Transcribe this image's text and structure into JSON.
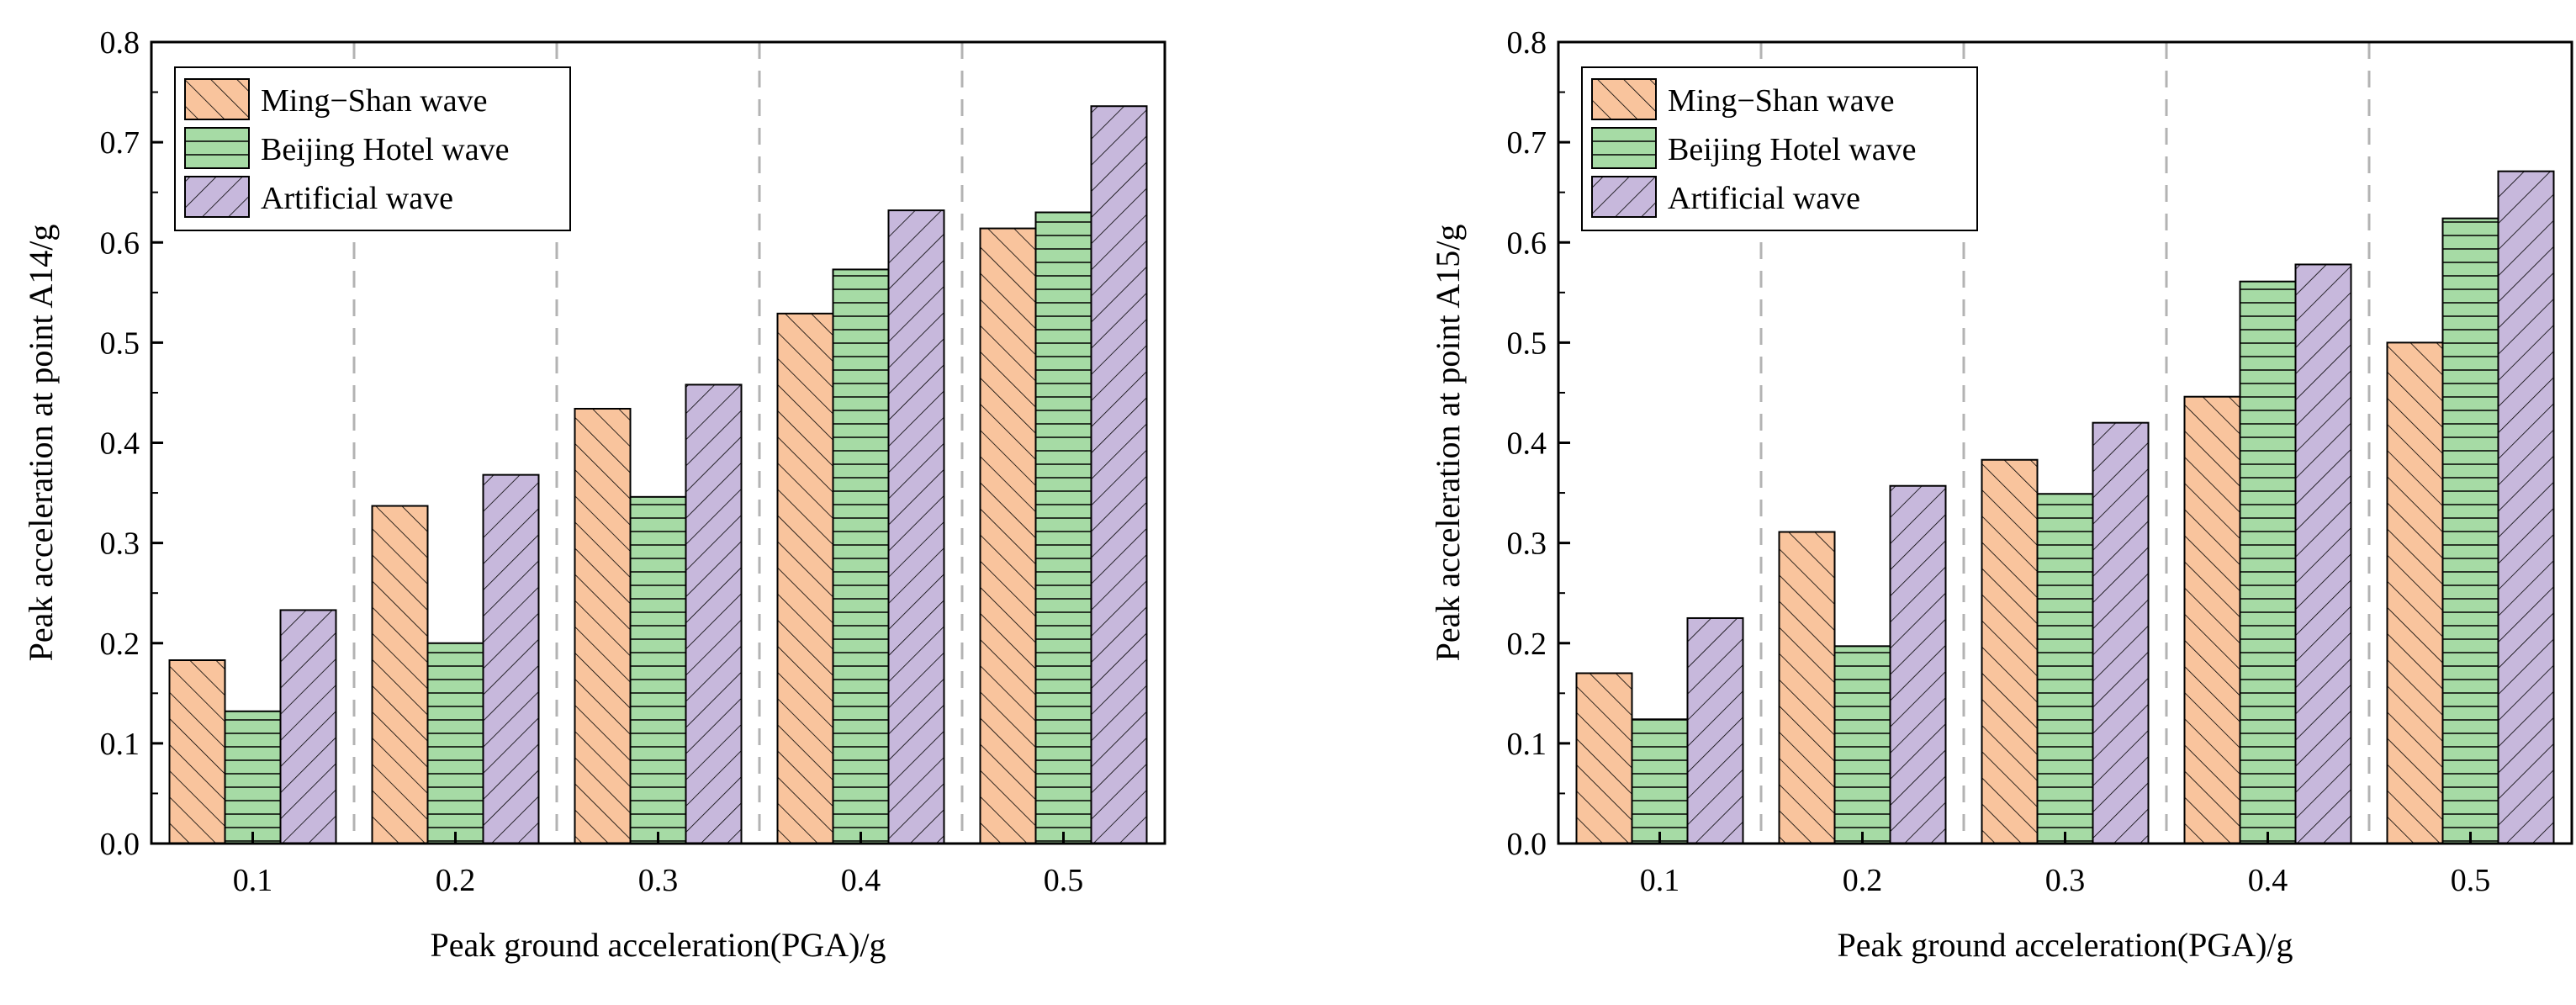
{
  "charts": [
    {
      "type": "bar",
      "categories": [
        "0.1",
        "0.2",
        "0.3",
        "0.4",
        "0.5"
      ],
      "series": [
        {
          "name": "Ming−Shan wave",
          "values": [
            0.183,
            0.337,
            0.434,
            0.529,
            0.614
          ],
          "fill": "#f9c49d",
          "hatch": "forward"
        },
        {
          "name": "Beijing Hotel wave",
          "values": [
            0.132,
            0.2,
            0.346,
            0.573,
            0.63
          ],
          "fill": "#a6dba5",
          "hatch": "horizontal"
        },
        {
          "name": "Artificial wave",
          "values": [
            0.233,
            0.368,
            0.458,
            0.632,
            0.736
          ],
          "fill": "#c7b8dc",
          "hatch": "backward"
        }
      ],
      "xlabel": "Peak ground acceleration(PGA)/g",
      "ylabel": "Peak acceleration at point A14/g",
      "ylim": [
        0,
        0.8
      ],
      "yticks": [
        "0.0",
        "0.1",
        "0.2",
        "0.3",
        "0.4",
        "0.5",
        "0.6",
        "0.7",
        "0.8"
      ],
      "separators": true,
      "legend": "top-left"
    },
    {
      "type": "bar",
      "categories": [
        "0.1",
        "0.2",
        "0.3",
        "0.4",
        "0.5"
      ],
      "series": [
        {
          "name": "Ming−Shan wave",
          "values": [
            0.17,
            0.311,
            0.383,
            0.446,
            0.5
          ],
          "fill": "#f9c49d",
          "hatch": "forward"
        },
        {
          "name": "Beijing Hotel wave",
          "values": [
            0.124,
            0.197,
            0.349,
            0.561,
            0.624
          ],
          "fill": "#a6dba5",
          "hatch": "horizontal"
        },
        {
          "name": "Artificial wave",
          "values": [
            0.225,
            0.357,
            0.42,
            0.578,
            0.671
          ],
          "fill": "#c7b8dc",
          "hatch": "backward"
        }
      ],
      "xlabel": "Peak ground acceleration(PGA)/g",
      "ylabel": "Peak acceleration at point A15/g",
      "ylim": [
        0,
        0.8
      ],
      "yticks": [
        "0.0",
        "0.1",
        "0.2",
        "0.3",
        "0.4",
        "0.5",
        "0.6",
        "0.7",
        "0.8"
      ],
      "separators": true,
      "legend": "top-left"
    }
  ]
}
